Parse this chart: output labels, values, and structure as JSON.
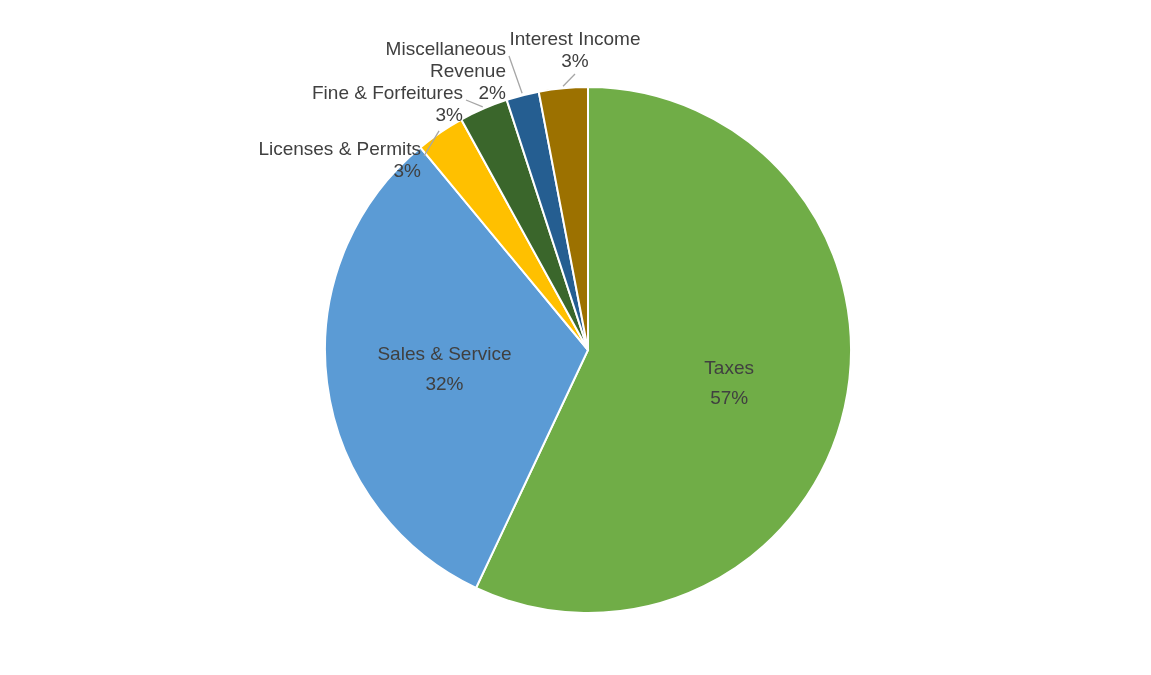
{
  "chart_data": {
    "type": "pie",
    "categories": [
      "Taxes",
      "Sales & Service",
      "Licenses & Permits",
      "Fine & Forfeitures",
      "Miscellaneous Revenue",
      "Interest Income"
    ],
    "values": [
      57,
      32,
      3,
      3,
      2,
      3
    ],
    "value_labels": [
      "57%",
      "32%",
      "3%",
      "3%",
      "2%",
      "3%"
    ],
    "colors": [
      "#70ad47",
      "#5b9bd5",
      "#ffc000",
      "#3a662b",
      "#255e91",
      "#9c7100"
    ],
    "legend": false
  }
}
